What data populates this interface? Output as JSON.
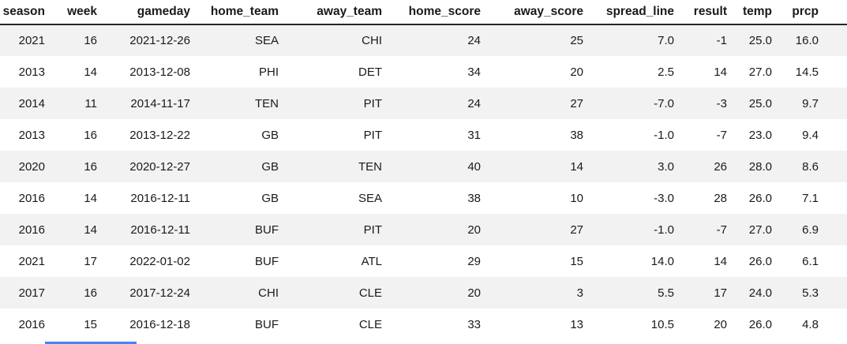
{
  "table": {
    "columns": [
      {
        "key": "season",
        "label": "season"
      },
      {
        "key": "week",
        "label": "week"
      },
      {
        "key": "gameday",
        "label": "gameday"
      },
      {
        "key": "home_team",
        "label": "home_team"
      },
      {
        "key": "away_team",
        "label": "away_team"
      },
      {
        "key": "home_score",
        "label": "home_score"
      },
      {
        "key": "away_score",
        "label": "away_score"
      },
      {
        "key": "spread_line",
        "label": "spread_line"
      },
      {
        "key": "result",
        "label": "result"
      },
      {
        "key": "temp",
        "label": "temp"
      },
      {
        "key": "prcp",
        "label": "prcp"
      }
    ],
    "rows": [
      [
        "2021",
        "16",
        "2021-12-26",
        "SEA",
        "CHI",
        "24",
        "25",
        "7.0",
        "-1",
        "25.0",
        "16.0"
      ],
      [
        "2013",
        "14",
        "2013-12-08",
        "PHI",
        "DET",
        "34",
        "20",
        "2.5",
        "14",
        "27.0",
        "14.5"
      ],
      [
        "2014",
        "11",
        "2014-11-17",
        "TEN",
        "PIT",
        "24",
        "27",
        "-7.0",
        "-3",
        "25.0",
        "9.7"
      ],
      [
        "2013",
        "16",
        "2013-12-22",
        "GB",
        "PIT",
        "31",
        "38",
        "-1.0",
        "-7",
        "23.0",
        "9.4"
      ],
      [
        "2020",
        "16",
        "2020-12-27",
        "GB",
        "TEN",
        "40",
        "14",
        "3.0",
        "26",
        "28.0",
        "8.6"
      ],
      [
        "2016",
        "14",
        "2016-12-11",
        "GB",
        "SEA",
        "38",
        "10",
        "-3.0",
        "28",
        "26.0",
        "7.1"
      ],
      [
        "2016",
        "14",
        "2016-12-11",
        "BUF",
        "PIT",
        "20",
        "27",
        "-1.0",
        "-7",
        "27.0",
        "6.9"
      ],
      [
        "2021",
        "17",
        "2022-01-02",
        "BUF",
        "ATL",
        "29",
        "15",
        "14.0",
        "14",
        "26.0",
        "6.1"
      ],
      [
        "2017",
        "16",
        "2017-12-24",
        "CHI",
        "CLE",
        "20",
        "3",
        "5.5",
        "17",
        "24.0",
        "5.3"
      ],
      [
        "2016",
        "15",
        "2016-12-18",
        "BUF",
        "CLE",
        "33",
        "13",
        "10.5",
        "20",
        "26.0",
        "4.8"
      ]
    ]
  },
  "colors": {
    "stripe": "#f2f2f2",
    "header_rule": "#262626",
    "text": "#1a1a1a",
    "bottom_indicator": "#4285f4"
  }
}
